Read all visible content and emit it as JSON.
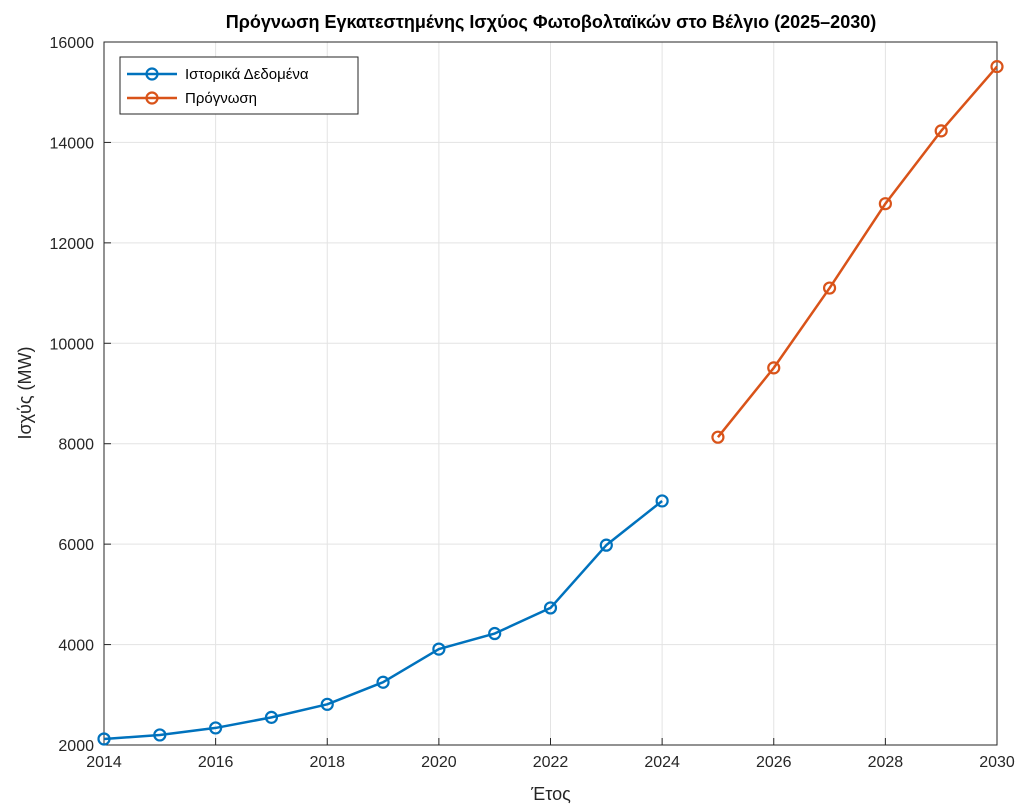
{
  "chart_data": {
    "type": "line",
    "title": "Πρόγνωση Εγκατεστημένης Ισχύος Φωτοβολταϊκών στο Βέλγιο (2025–2030)",
    "xlabel": "Έτος",
    "ylabel": "Ισχύς (MW)",
    "xlim": [
      2014,
      2030
    ],
    "ylim": [
      2000,
      16000
    ],
    "xticks": [
      2014,
      2016,
      2018,
      2020,
      2022,
      2024,
      2026,
      2028,
      2030
    ],
    "yticks": [
      2000,
      4000,
      6000,
      8000,
      10000,
      12000,
      14000,
      16000
    ],
    "grid": true,
    "legend_position": "top-left",
    "series": [
      {
        "name": "Ιστορικά Δεδομένα",
        "color": "#0072BD",
        "marker": "circle",
        "x": [
          2014,
          2015,
          2016,
          2017,
          2018,
          2019,
          2020,
          2021,
          2022,
          2023,
          2024
        ],
        "y": [
          2120,
          2200,
          2340,
          2550,
          2810,
          3250,
          3910,
          4220,
          4730,
          5980,
          6860
        ]
      },
      {
        "name": "Πρόγνωση",
        "color": "#D95319",
        "marker": "circle",
        "x": [
          2025,
          2026,
          2027,
          2028,
          2029,
          2030
        ],
        "y": [
          8130,
          9510,
          11100,
          12780,
          14230,
          15510
        ]
      }
    ]
  }
}
